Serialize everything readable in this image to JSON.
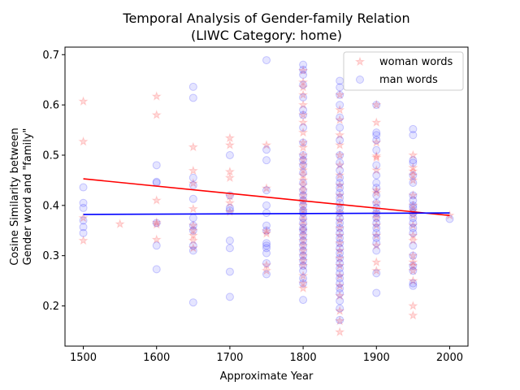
{
  "chart_data": {
    "type": "scatter",
    "title_line1": "Temporal Analysis of Gender-family Relation",
    "title_line2": "(LIWC Category: home)",
    "xlabel": "Approximate Year",
    "ylabel_line1": "Cosine Similarity between",
    "ylabel_line2": "Gender word and \"family\"",
    "xlim": [
      1475,
      2025
    ],
    "ylim": [
      0.12,
      0.715
    ],
    "x_ticks": [
      1500,
      1600,
      1700,
      1800,
      1900,
      2000
    ],
    "y_ticks": [
      0.2,
      0.3,
      0.4,
      0.5,
      0.6,
      0.7
    ],
    "legend_position": "top-right",
    "grid": false,
    "series": [
      {
        "name": "woman words",
        "marker": "star",
        "color": "#ff0000",
        "points": [
          [
            1500,
            0.607
          ],
          [
            1500,
            0.527
          ],
          [
            1500,
            0.375
          ],
          [
            1500,
            0.33
          ],
          [
            1550,
            0.363
          ],
          [
            1600,
            0.617
          ],
          [
            1600,
            0.58
          ],
          [
            1600,
            0.41
          ],
          [
            1600,
            0.366
          ],
          [
            1600,
            0.362
          ],
          [
            1600,
            0.332
          ],
          [
            1650,
            0.516
          ],
          [
            1650,
            0.469
          ],
          [
            1650,
            0.444
          ],
          [
            1650,
            0.393
          ],
          [
            1650,
            0.36
          ],
          [
            1650,
            0.35
          ],
          [
            1650,
            0.34
          ],
          [
            1650,
            0.33
          ],
          [
            1650,
            0.315
          ],
          [
            1700,
            0.534
          ],
          [
            1700,
            0.52
          ],
          [
            1700,
            0.467
          ],
          [
            1700,
            0.455
          ],
          [
            1700,
            0.418
          ],
          [
            1700,
            0.405
          ],
          [
            1700,
            0.387
          ],
          [
            1750,
            0.52
          ],
          [
            1750,
            0.434
          ],
          [
            1750,
            0.349
          ],
          [
            1750,
            0.344
          ],
          [
            1750,
            0.281
          ],
          [
            1750,
            0.27
          ],
          [
            1800,
            0.668
          ],
          [
            1800,
            0.645
          ],
          [
            1800,
            0.635
          ],
          [
            1800,
            0.62
          ],
          [
            1800,
            0.6
          ],
          [
            1800,
            0.58
          ],
          [
            1800,
            0.565
          ],
          [
            1800,
            0.545
          ],
          [
            1800,
            0.525
          ],
          [
            1800,
            0.515
          ],
          [
            1800,
            0.5
          ],
          [
            1800,
            0.49
          ],
          [
            1800,
            0.48
          ],
          [
            1800,
            0.47
          ],
          [
            1800,
            0.46
          ],
          [
            1800,
            0.45
          ],
          [
            1800,
            0.44
          ],
          [
            1800,
            0.43
          ],
          [
            1800,
            0.42
          ],
          [
            1800,
            0.41
          ],
          [
            1800,
            0.4
          ],
          [
            1800,
            0.39
          ],
          [
            1800,
            0.38
          ],
          [
            1800,
            0.37
          ],
          [
            1800,
            0.36
          ],
          [
            1800,
            0.35
          ],
          [
            1800,
            0.34
          ],
          [
            1800,
            0.33
          ],
          [
            1800,
            0.32
          ],
          [
            1800,
            0.31
          ],
          [
            1800,
            0.3
          ],
          [
            1800,
            0.29
          ],
          [
            1800,
            0.28
          ],
          [
            1800,
            0.26
          ],
          [
            1800,
            0.245
          ],
          [
            1800,
            0.235
          ],
          [
            1850,
            0.62
          ],
          [
            1850,
            0.59
          ],
          [
            1850,
            0.57
          ],
          [
            1850,
            0.54
          ],
          [
            1850,
            0.52
          ],
          [
            1850,
            0.5
          ],
          [
            1850,
            0.48
          ],
          [
            1850,
            0.46
          ],
          [
            1850,
            0.44
          ],
          [
            1850,
            0.42
          ],
          [
            1850,
            0.4
          ],
          [
            1850,
            0.385
          ],
          [
            1850,
            0.37
          ],
          [
            1850,
            0.355
          ],
          [
            1850,
            0.34
          ],
          [
            1850,
            0.325
          ],
          [
            1850,
            0.31
          ],
          [
            1850,
            0.295
          ],
          [
            1850,
            0.28
          ],
          [
            1850,
            0.26
          ],
          [
            1850,
            0.24
          ],
          [
            1850,
            0.22
          ],
          [
            1850,
            0.19
          ],
          [
            1850,
            0.17
          ],
          [
            1850,
            0.148
          ],
          [
            1900,
            0.6
          ],
          [
            1900,
            0.565
          ],
          [
            1900,
            0.525
          ],
          [
            1900,
            0.498
          ],
          [
            1900,
            0.495
          ],
          [
            1900,
            0.47
          ],
          [
            1900,
            0.43
          ],
          [
            1900,
            0.425
          ],
          [
            1900,
            0.405
          ],
          [
            1900,
            0.385
          ],
          [
            1900,
            0.375
          ],
          [
            1900,
            0.36
          ],
          [
            1900,
            0.34
          ],
          [
            1900,
            0.32
          ],
          [
            1900,
            0.287
          ],
          [
            1900,
            0.27
          ],
          [
            1950,
            0.5
          ],
          [
            1950,
            0.475
          ],
          [
            1950,
            0.468
          ],
          [
            1950,
            0.46
          ],
          [
            1950,
            0.45
          ],
          [
            1950,
            0.42
          ],
          [
            1950,
            0.4
          ],
          [
            1950,
            0.39
          ],
          [
            1950,
            0.38
          ],
          [
            1950,
            0.36
          ],
          [
            1950,
            0.34
          ],
          [
            1950,
            0.33
          ],
          [
            1950,
            0.3
          ],
          [
            1950,
            0.287
          ],
          [
            1950,
            0.28
          ],
          [
            1950,
            0.27
          ],
          [
            1950,
            0.25
          ],
          [
            1950,
            0.2
          ],
          [
            1950,
            0.181
          ],
          [
            2000,
            0.38
          ]
        ],
        "trend": [
          [
            1500,
            0.453
          ],
          [
            2000,
            0.38
          ]
        ]
      },
      {
        "name": "man words",
        "marker": "circle",
        "color": "#0000ff",
        "points": [
          [
            1500,
            0.436
          ],
          [
            1500,
            0.405
          ],
          [
            1500,
            0.395
          ],
          [
            1500,
            0.37
          ],
          [
            1500,
            0.357
          ],
          [
            1500,
            0.345
          ],
          [
            1600,
            0.48
          ],
          [
            1600,
            0.447
          ],
          [
            1600,
            0.445
          ],
          [
            1600,
            0.365
          ],
          [
            1600,
            0.32
          ],
          [
            1600,
            0.273
          ],
          [
            1650,
            0.636
          ],
          [
            1650,
            0.614
          ],
          [
            1650,
            0.455
          ],
          [
            1650,
            0.44
          ],
          [
            1650,
            0.413
          ],
          [
            1650,
            0.375
          ],
          [
            1650,
            0.36
          ],
          [
            1650,
            0.35
          ],
          [
            1650,
            0.32
          ],
          [
            1650,
            0.31
          ],
          [
            1650,
            0.207
          ],
          [
            1700,
            0.5
          ],
          [
            1700,
            0.42
          ],
          [
            1700,
            0.395
          ],
          [
            1700,
            0.39
          ],
          [
            1700,
            0.33
          ],
          [
            1700,
            0.315
          ],
          [
            1700,
            0.268
          ],
          [
            1700,
            0.218
          ],
          [
            1750,
            0.689
          ],
          [
            1750,
            0.511
          ],
          [
            1750,
            0.49
          ],
          [
            1750,
            0.43
          ],
          [
            1750,
            0.4
          ],
          [
            1750,
            0.385
          ],
          [
            1750,
            0.36
          ],
          [
            1750,
            0.35
          ],
          [
            1750,
            0.325
          ],
          [
            1750,
            0.32
          ],
          [
            1750,
            0.315
          ],
          [
            1750,
            0.305
          ],
          [
            1750,
            0.285
          ],
          [
            1750,
            0.263
          ],
          [
            1800,
            0.68
          ],
          [
            1800,
            0.67
          ],
          [
            1800,
            0.66
          ],
          [
            1800,
            0.64
          ],
          [
            1800,
            0.615
          ],
          [
            1800,
            0.59
          ],
          [
            1800,
            0.58
          ],
          [
            1800,
            0.555
          ],
          [
            1800,
            0.525
          ],
          [
            1800,
            0.5
          ],
          [
            1800,
            0.49
          ],
          [
            1800,
            0.48
          ],
          [
            1800,
            0.465
          ],
          [
            1800,
            0.445
          ],
          [
            1800,
            0.43
          ],
          [
            1800,
            0.42
          ],
          [
            1800,
            0.41
          ],
          [
            1800,
            0.4
          ],
          [
            1800,
            0.39
          ],
          [
            1800,
            0.385
          ],
          [
            1800,
            0.375
          ],
          [
            1800,
            0.365
          ],
          [
            1800,
            0.355
          ],
          [
            1800,
            0.35
          ],
          [
            1800,
            0.34
          ],
          [
            1800,
            0.33
          ],
          [
            1800,
            0.32
          ],
          [
            1800,
            0.31
          ],
          [
            1800,
            0.3
          ],
          [
            1800,
            0.29
          ],
          [
            1800,
            0.28
          ],
          [
            1800,
            0.27
          ],
          [
            1800,
            0.255
          ],
          [
            1800,
            0.245
          ],
          [
            1800,
            0.212
          ],
          [
            1850,
            0.648
          ],
          [
            1850,
            0.635
          ],
          [
            1850,
            0.62
          ],
          [
            1850,
            0.6
          ],
          [
            1850,
            0.575
          ],
          [
            1850,
            0.555
          ],
          [
            1850,
            0.53
          ],
          [
            1850,
            0.5
          ],
          [
            1850,
            0.485
          ],
          [
            1850,
            0.47
          ],
          [
            1850,
            0.455
          ],
          [
            1850,
            0.445
          ],
          [
            1850,
            0.435
          ],
          [
            1850,
            0.425
          ],
          [
            1850,
            0.415
          ],
          [
            1850,
            0.405
          ],
          [
            1850,
            0.395
          ],
          [
            1850,
            0.385
          ],
          [
            1850,
            0.375
          ],
          [
            1850,
            0.365
          ],
          [
            1850,
            0.355
          ],
          [
            1850,
            0.345
          ],
          [
            1850,
            0.335
          ],
          [
            1850,
            0.325
          ],
          [
            1850,
            0.315
          ],
          [
            1850,
            0.305
          ],
          [
            1850,
            0.295
          ],
          [
            1850,
            0.285
          ],
          [
            1850,
            0.275
          ],
          [
            1850,
            0.265
          ],
          [
            1850,
            0.255
          ],
          [
            1850,
            0.245
          ],
          [
            1850,
            0.235
          ],
          [
            1850,
            0.225
          ],
          [
            1850,
            0.21
          ],
          [
            1850,
            0.195
          ],
          [
            1850,
            0.172
          ],
          [
            1900,
            0.6
          ],
          [
            1900,
            0.545
          ],
          [
            1900,
            0.54
          ],
          [
            1900,
            0.53
          ],
          [
            1900,
            0.51
          ],
          [
            1900,
            0.48
          ],
          [
            1900,
            0.46
          ],
          [
            1900,
            0.445
          ],
          [
            1900,
            0.435
          ],
          [
            1900,
            0.42
          ],
          [
            1900,
            0.405
          ],
          [
            1900,
            0.395
          ],
          [
            1900,
            0.385
          ],
          [
            1900,
            0.375
          ],
          [
            1900,
            0.365
          ],
          [
            1900,
            0.355
          ],
          [
            1900,
            0.345
          ],
          [
            1900,
            0.335
          ],
          [
            1900,
            0.325
          ],
          [
            1900,
            0.31
          ],
          [
            1900,
            0.265
          ],
          [
            1900,
            0.226
          ],
          [
            1950,
            0.552
          ],
          [
            1950,
            0.54
          ],
          [
            1950,
            0.49
          ],
          [
            1950,
            0.485
          ],
          [
            1950,
            0.46
          ],
          [
            1950,
            0.445
          ],
          [
            1950,
            0.42
          ],
          [
            1950,
            0.41
          ],
          [
            1950,
            0.4
          ],
          [
            1950,
            0.395
          ],
          [
            1950,
            0.385
          ],
          [
            1950,
            0.375
          ],
          [
            1950,
            0.365
          ],
          [
            1950,
            0.355
          ],
          [
            1950,
            0.345
          ],
          [
            1950,
            0.32
          ],
          [
            1950,
            0.3
          ],
          [
            1950,
            0.28
          ],
          [
            1950,
            0.27
          ],
          [
            1950,
            0.245
          ],
          [
            1950,
            0.24
          ],
          [
            2000,
            0.373
          ]
        ],
        "trend": [
          [
            1500,
            0.382
          ],
          [
            2000,
            0.385
          ]
        ]
      }
    ]
  }
}
